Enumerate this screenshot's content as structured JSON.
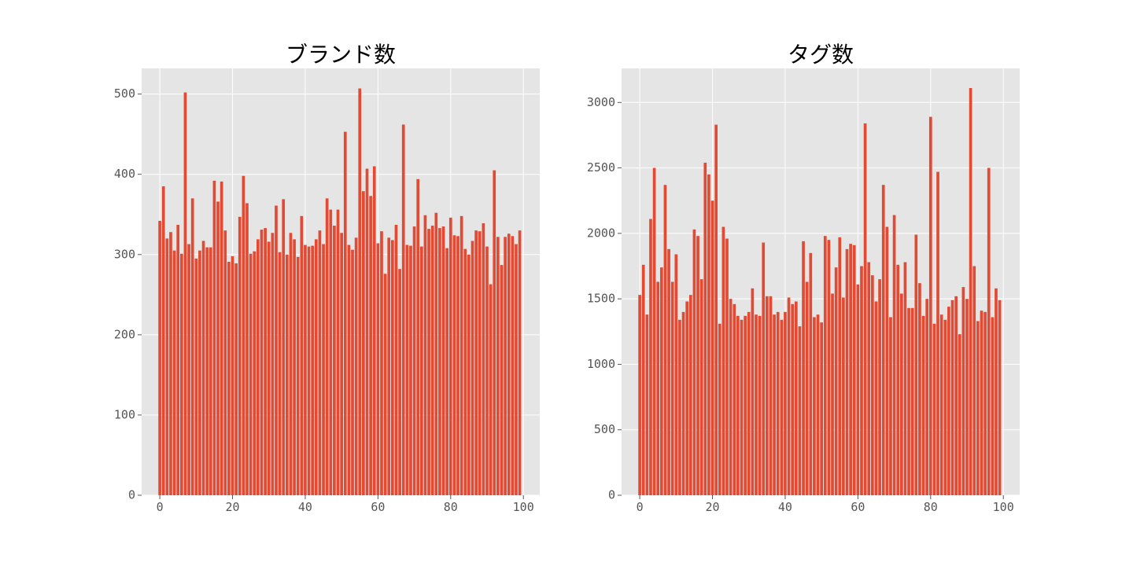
{
  "colors": {
    "bar": "#E24A33",
    "panel": "#E5E5E5",
    "grid": "#FFFFFF",
    "tick": "#555555"
  },
  "chart_data": [
    {
      "type": "bar",
      "title": "ブランド数",
      "xlabel": "",
      "ylabel": "",
      "grid": true,
      "xlim": [
        -5,
        104.5
      ],
      "ylim": [
        0,
        532
      ],
      "xticks": [
        0,
        20,
        40,
        60,
        80,
        100
      ],
      "xtick_labels": [
        "0",
        "20",
        "40",
        "60",
        "80",
        "100"
      ],
      "yticks": [
        0,
        100,
        200,
        300,
        400,
        500
      ],
      "ytick_labels": [
        "0",
        "100",
        "200",
        "300",
        "400",
        "500"
      ],
      "x": [
        0,
        1,
        2,
        3,
        4,
        5,
        6,
        7,
        8,
        9,
        10,
        11,
        12,
        13,
        14,
        15,
        16,
        17,
        18,
        19,
        20,
        21,
        22,
        23,
        24,
        25,
        26,
        27,
        28,
        29,
        30,
        31,
        32,
        33,
        34,
        35,
        36,
        37,
        38,
        39,
        40,
        41,
        42,
        43,
        44,
        45,
        46,
        47,
        48,
        49,
        50,
        51,
        52,
        53,
        54,
        55,
        56,
        57,
        58,
        59,
        60,
        61,
        62,
        63,
        64,
        65,
        66,
        67,
        68,
        69,
        70,
        71,
        72,
        73,
        74,
        75,
        76,
        77,
        78,
        79,
        80,
        81,
        82,
        83,
        84,
        85,
        86,
        87,
        88,
        89,
        90,
        91,
        92,
        93,
        94,
        95,
        96,
        97,
        98,
        99
      ],
      "values": [
        342,
        385,
        320,
        328,
        305,
        337,
        301,
        502,
        313,
        370,
        295,
        305,
        317,
        309,
        309,
        392,
        366,
        391,
        330,
        291,
        298,
        289,
        347,
        398,
        364,
        301,
        304,
        319,
        331,
        333,
        316,
        327,
        361,
        303,
        369,
        300,
        327,
        319,
        297,
        348,
        312,
        310,
        311,
        319,
        330,
        313,
        370,
        356,
        336,
        356,
        327,
        453,
        312,
        306,
        321,
        507,
        379,
        407,
        373,
        410,
        314,
        329,
        276,
        321,
        318,
        337,
        282,
        462,
        312,
        311,
        335,
        394,
        310,
        349,
        332,
        336,
        352,
        333,
        335,
        308,
        346,
        324,
        323,
        348,
        307,
        300,
        317,
        330,
        329,
        339,
        310,
        263,
        405,
        322,
        287,
        322,
        326,
        323,
        313,
        330
      ]
    },
    {
      "type": "bar",
      "title": "タグ数",
      "xlabel": "",
      "ylabel": "",
      "grid": true,
      "xlim": [
        -5,
        104.5
      ],
      "ylim": [
        0,
        3260
      ],
      "xticks": [
        0,
        20,
        40,
        60,
        80,
        100
      ],
      "xtick_labels": [
        "0",
        "20",
        "40",
        "60",
        "80",
        "100"
      ],
      "yticks": [
        0,
        500,
        1000,
        1500,
        2000,
        2500,
        3000
      ],
      "ytick_labels": [
        "0",
        "500",
        "1000",
        "1500",
        "2000",
        "2500",
        "3000"
      ],
      "x": [
        0,
        1,
        2,
        3,
        4,
        5,
        6,
        7,
        8,
        9,
        10,
        11,
        12,
        13,
        14,
        15,
        16,
        17,
        18,
        19,
        20,
        21,
        22,
        23,
        24,
        25,
        26,
        27,
        28,
        29,
        30,
        31,
        32,
        33,
        34,
        35,
        36,
        37,
        38,
        39,
        40,
        41,
        42,
        43,
        44,
        45,
        46,
        47,
        48,
        49,
        50,
        51,
        52,
        53,
        54,
        55,
        56,
        57,
        58,
        59,
        60,
        61,
        62,
        63,
        64,
        65,
        66,
        67,
        68,
        69,
        70,
        71,
        72,
        73,
        74,
        75,
        76,
        77,
        78,
        79,
        80,
        81,
        82,
        83,
        84,
        85,
        86,
        87,
        88,
        89,
        90,
        91,
        92,
        93,
        94,
        95,
        96,
        97,
        98,
        99
      ],
      "values": [
        1530,
        1760,
        1380,
        2110,
        2500,
        1630,
        1740,
        2370,
        1880,
        1630,
        1840,
        1340,
        1400,
        1480,
        1530,
        2030,
        1980,
        1650,
        2540,
        2450,
        2250,
        2830,
        1310,
        2050,
        1960,
        1500,
        1460,
        1370,
        1340,
        1370,
        1400,
        1580,
        1380,
        1370,
        1930,
        1520,
        1520,
        1380,
        1400,
        1340,
        1400,
        1510,
        1460,
        1480,
        1290,
        1940,
        1630,
        1850,
        1360,
        1380,
        1320,
        1980,
        1950,
        1540,
        1740,
        1970,
        1510,
        1880,
        1920,
        1910,
        1610,
        1750,
        2840,
        1780,
        1680,
        1480,
        1650,
        2370,
        2050,
        1360,
        2140,
        1760,
        1540,
        1780,
        1430,
        1430,
        1990,
        1620,
        1370,
        1500,
        2890,
        1310,
        2470,
        1380,
        1340,
        1440,
        1490,
        1520,
        1230,
        1590,
        1500,
        3110,
        1750,
        1330,
        1410,
        1400,
        2500,
        1360,
        1580,
        1490
      ]
    }
  ]
}
